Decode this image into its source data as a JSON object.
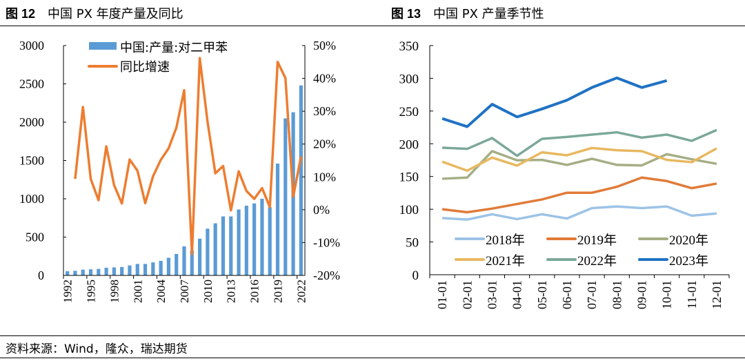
{
  "header": {
    "fig12_num": "图 12",
    "fig12_title": "中国 PX 年度产量及同比",
    "fig13_num": "图 13",
    "fig13_title": "中国 PX 产量季节性"
  },
  "footer": {
    "source": "资料来源：Wind，隆众，瑞达期货"
  },
  "chart_data": [
    {
      "type": "bar+line",
      "title": "中国 PX 年度产量及同比",
      "categories": [
        1992,
        1993,
        1994,
        1995,
        1996,
        1997,
        1998,
        1999,
        2000,
        2001,
        2002,
        2003,
        2004,
        2005,
        2006,
        2007,
        2008,
        2009,
        2010,
        2011,
        2012,
        2013,
        2014,
        2015,
        2016,
        2017,
        2018,
        2019,
        2020,
        2021,
        2022
      ],
      "x_tick_labels": [
        "1992",
        "1995",
        "1998",
        "2001",
        "2004",
        "2007",
        "2010",
        "2013",
        "2016",
        "2019",
        "2022"
      ],
      "series": [
        {
          "name": "中国:产量:对二甲苯",
          "type": "bar",
          "axis": "left",
          "color": "#5B9BD5",
          "values": [
            55,
            60,
            75,
            80,
            85,
            100,
            105,
            110,
            130,
            150,
            150,
            170,
            190,
            230,
            280,
            380,
            330,
            480,
            610,
            680,
            770,
            770,
            860,
            910,
            940,
            1000,
            890,
            1460,
            2050,
            2130,
            2480
          ]
        },
        {
          "name": "同比增速",
          "type": "line",
          "axis": "right",
          "color": "#ED7D31",
          "values": [
            null,
            9.4,
            31.3,
            9.4,
            2.9,
            19.3,
            7.5,
            1.9,
            15.3,
            11.9,
            2.0,
            10.2,
            15.2,
            18.7,
            25.0,
            36.4,
            -13.5,
            46.2,
            26.8,
            11.1,
            13.3,
            -0.2,
            11.7,
            5.7,
            3.3,
            6.6,
            0.8,
            45.0,
            40.1,
            4.0,
            16.2
          ]
        }
      ],
      "y_left": {
        "ylim": [
          0,
          3000
        ],
        "ticks": [
          "0",
          "500",
          "1000",
          "1500",
          "2000",
          "2500",
          "3000"
        ]
      },
      "y_right": {
        "ylim": [
          -20,
          50
        ],
        "ticks": [
          "-20%",
          "-10%",
          "0%",
          "10%",
          "20%",
          "30%",
          "40%",
          "50%"
        ]
      },
      "legend": "top-left",
      "grid": false
    },
    {
      "type": "line",
      "title": "中国 PX 产量季节性",
      "categories": [
        "01-01",
        "02-01",
        "03-01",
        "04-01",
        "05-01",
        "06-01",
        "07-01",
        "08-01",
        "09-01",
        "10-01",
        "11-01",
        "12-01"
      ],
      "ylim": [
        0,
        350
      ],
      "y_ticks": [
        "0",
        "50",
        "100",
        "150",
        "200",
        "250",
        "300",
        "350"
      ],
      "series": [
        {
          "name": "2018年",
          "color": "#9DC3E6",
          "values": [
            86.6,
            84.2,
            92.3,
            84.9,
            92.3,
            85.9,
            101.7,
            104.2,
            101.7,
            104.2,
            90.1,
            93.6
          ]
        },
        {
          "name": "2019年",
          "color": "#E07B39",
          "values": [
            100,
            95.4,
            101,
            108,
            115,
            125.2,
            125.2,
            134.3,
            148.4,
            143.1,
            132.2,
            139.2
          ]
        },
        {
          "name": "2020年",
          "color": "#A5AE84",
          "values": [
            146.6,
            148.4,
            188.7,
            174.7,
            175.4,
            167.7,
            177.1,
            167.7,
            167,
            184.1,
            176.4,
            169.4
          ]
        },
        {
          "name": "2021年",
          "color": "#E8B860",
          "values": [
            172.6,
            158.9,
            178.9,
            166.6,
            187,
            182.4,
            193.6,
            190.1,
            188.7,
            175.4,
            171.9,
            192.9
          ]
        },
        {
          "name": "2022年",
          "color": "#7BA89A",
          "values": [
            194,
            192.2,
            208.7,
            181.7,
            207.6,
            210.4,
            214,
            217.5,
            209.4,
            214,
            204.5,
            221
          ]
        },
        {
          "name": "2023年",
          "color": "#1F72C4",
          "values": [
            238.5,
            226.2,
            260.3,
            241,
            253.2,
            266.6,
            285.9,
            300.6,
            285.9,
            296.4,
            null,
            null
          ]
        }
      ],
      "legend": "bottom-inside",
      "grid": false
    }
  ]
}
